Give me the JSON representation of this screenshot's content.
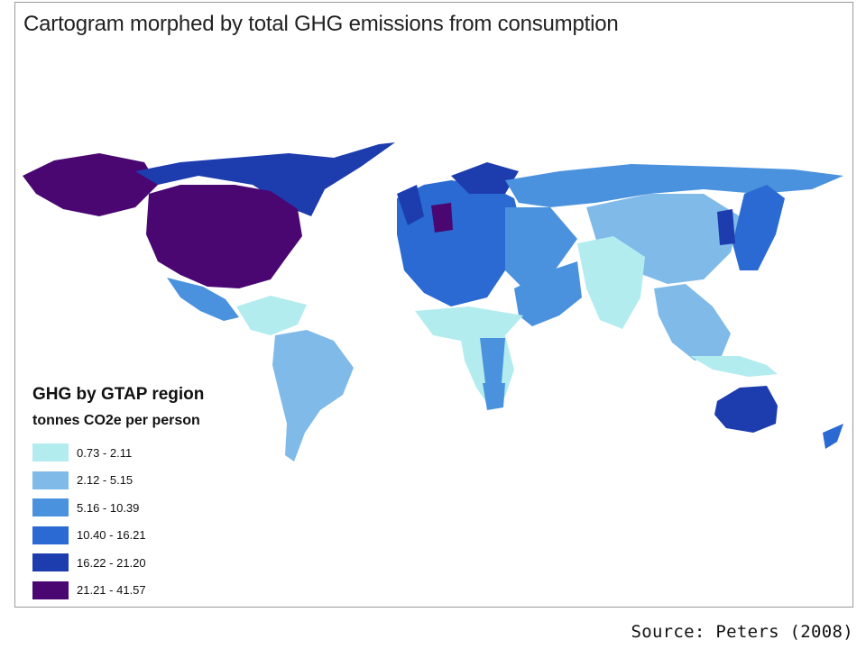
{
  "map": {
    "title": "Cartogram morphed by total GHG emissions from consumption"
  },
  "legend": {
    "title": "GHG by GTAP region",
    "subtitle": "tonnes CO2e per person",
    "classes": [
      {
        "label": "0.73 - 2.11",
        "color": "#b3ecef"
      },
      {
        "label": "2.12 - 5.15",
        "color": "#7fbae8"
      },
      {
        "label": "5.16 - 10.39",
        "color": "#4a92de"
      },
      {
        "label": "10.40 - 16.21",
        "color": "#2a6ad2"
      },
      {
        "label": "16.22 - 21.20",
        "color": "#1d3cae"
      },
      {
        "label": "21.21 - 41.57",
        "color": "#4a0772"
      }
    ]
  },
  "source": "Source: Peters (2008)"
}
